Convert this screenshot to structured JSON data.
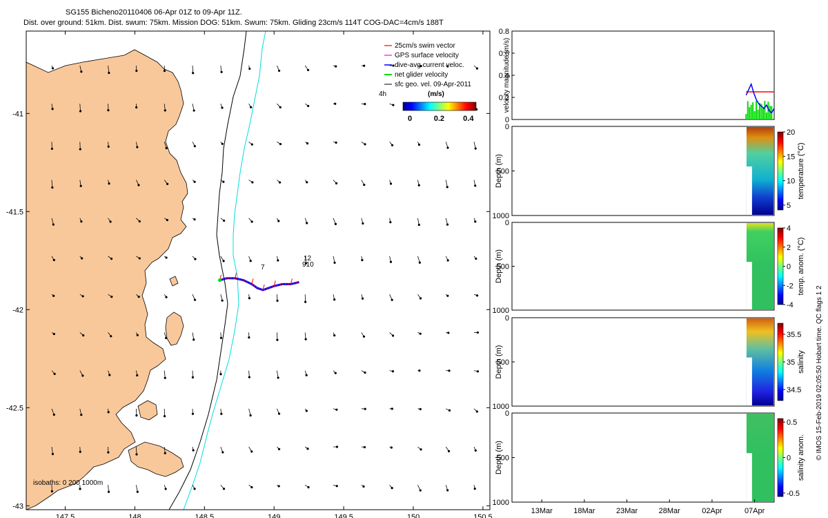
{
  "header": {
    "title": "SG155 Bicheno20110406 06-Apr 01Z to 09-Apr 11Z.",
    "subtitle": "Dist. over ground: 51km. Dist. swum: 75km. Mission DOG: 51km. Swum: 75km. Gliding 23cm/s 114T COG-DAC=4cm/s 188T"
  },
  "credit": "© IMOS 15-Feb-2019 02:05:50 Hobart time. QC flags 1  2",
  "colors": {
    "land": "#f9c89a",
    "isobath_200": "#000000",
    "isobath_1000": "#00dddd",
    "swim_vector": "#ff0000",
    "gps_velocity": "#ff00ff",
    "dac_velocity": "#0000ff",
    "net_velocity": "#00dd00",
    "geo_velocity": "#000000"
  },
  "chart_data": [
    {
      "type": "scatter",
      "name": "map",
      "xlim": [
        147.22,
        150.55
      ],
      "ylim": [
        -43.02,
        -40.58
      ],
      "x_ticks": [
        "147.5",
        "148",
        "148.5",
        "149",
        "149.5",
        "150",
        "150.5"
      ],
      "y_ticks": [
        "-41",
        "-41.5",
        "-42",
        "-42.5",
        "-43"
      ],
      "x_tick_values": [
        147.5,
        148,
        148.5,
        149,
        149.5,
        150,
        150.5
      ],
      "y_tick_values": [
        -41,
        -41.5,
        -42,
        -42.5,
        -43
      ],
      "legend": {
        "placement": "top-right",
        "entries": [
          "25cm/s swim vector",
          "GPS surface velocity",
          "dive-avg current veloc.",
          "net glider velocity",
          "sfc geo. vel. 09-Apr-2011"
        ],
        "extra": "4h"
      },
      "colorbar": {
        "title": "(m/s)",
        "ticks": [
          "0",
          "0.2",
          "0.4"
        ],
        "range": [
          0,
          0.5
        ]
      },
      "isobath_label": "isobaths: 0   200  1000m",
      "track_labels": [
        "7",
        "12",
        "910"
      ],
      "track_lonlat": [
        [
          148.61,
          -41.85
        ],
        [
          148.66,
          -41.84
        ],
        [
          148.72,
          -41.84
        ],
        [
          148.78,
          -41.85
        ],
        [
          148.84,
          -41.87
        ],
        [
          148.88,
          -41.89
        ],
        [
          148.92,
          -41.9
        ],
        [
          148.96,
          -41.89
        ],
        [
          149.0,
          -41.88
        ],
        [
          149.06,
          -41.87
        ],
        [
          149.12,
          -41.87
        ],
        [
          149.18,
          -41.86
        ]
      ]
    },
    {
      "type": "line",
      "name": "velocity magnitude",
      "ylabel": "velocity magnitude (m/s)",
      "ylim": [
        0,
        0.8
      ],
      "y_ticks": [
        "0",
        "0.2",
        "0.4",
        "0.6",
        "0.8"
      ],
      "x_ticks": [
        "13Mar",
        "18Mar",
        "23Mar",
        "28Mar",
        "02Apr",
        "07Apr"
      ],
      "x_tick_days": [
        13,
        18,
        23,
        28,
        33,
        38
      ],
      "xlim_days": [
        9.5,
        40.3
      ],
      "series": [
        {
          "color": "#ff0000",
          "x": [
            37.0,
            40.3
          ],
          "y": [
            0.25,
            0.25
          ]
        },
        {
          "color": "#0000ff",
          "x": [
            37.0,
            37.3,
            37.6,
            37.9,
            38.2,
            38.5,
            38.8,
            39.1,
            39.4,
            39.7,
            40.0,
            40.3
          ],
          "y": [
            0.22,
            0.27,
            0.32,
            0.24,
            0.18,
            0.14,
            0.12,
            0.1,
            0.13,
            0.08,
            0.06,
            0.1
          ]
        }
      ]
    },
    {
      "type": "heatmap",
      "name": "temperature",
      "ylabel": "Depth (m)",
      "clabel": "temperature (°C)",
      "y_ticks": [
        "0",
        "500",
        "1000"
      ],
      "c_ticks": [
        "20",
        "15",
        "10",
        "5"
      ],
      "clim": [
        4,
        20
      ]
    },
    {
      "type": "heatmap",
      "name": "temperature anomaly",
      "ylabel": "Depth (m)",
      "clabel": "temp. anom. (°C)",
      "y_ticks": [
        "0",
        "500",
        "1000"
      ],
      "c_ticks": [
        "4",
        "2",
        "0",
        "-2",
        "-4"
      ],
      "clim": [
        -4,
        4
      ]
    },
    {
      "type": "heatmap",
      "name": "salinity",
      "ylabel": "Depth (m)",
      "clabel": "salinity",
      "y_ticks": [
        "0",
        "500",
        "1000"
      ],
      "c_ticks": [
        "35.5",
        "35",
        "34.5"
      ],
      "clim": [
        34.3,
        35.7
      ]
    },
    {
      "type": "heatmap",
      "name": "salinity anomaly",
      "ylabel": "Depth (m)",
      "clabel": "salinity anom.",
      "y_ticks": [
        "0",
        "500",
        "1000"
      ],
      "c_ticks": [
        "0.5",
        "0",
        "-0.5"
      ],
      "clim": [
        -0.55,
        0.55
      ]
    }
  ]
}
